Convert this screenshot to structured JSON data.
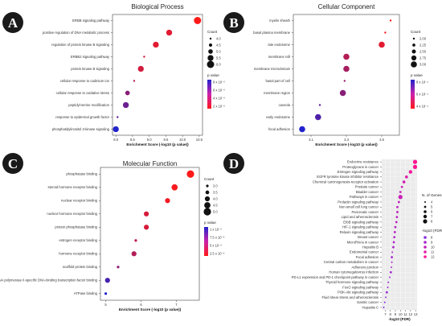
{
  "panels": [
    {
      "id": "A",
      "badge": "A",
      "chart_data": {
        "type": "scatter",
        "title": "Biological Process",
        "xlabel": "Enrichment Score (-log10 (p value))",
        "ylabel": "",
        "x_ticks": [
          "8.0",
          "8.5",
          "9.0",
          "9.5",
          "10.0",
          "10.5"
        ],
        "xlim": [
          7.9,
          10.6
        ],
        "categories": [
          "ERBB signaling pathway",
          "positive regulation of DNA metabolic process",
          "regulation of protein kinase B signaling",
          "ERBB2 signaling pathway",
          "protein kinase B signaling",
          "cellular response to cadmium ion",
          "cellular response to oxidative stress",
          "peptidyl-serine modification",
          "response to epidermal growth factor",
          "phosphatidylinositol 3-kinase signaling"
        ],
        "x": [
          10.45,
          9.6,
          9.2,
          8.85,
          8.75,
          8.55,
          8.35,
          8.3,
          8.05,
          8.0
        ],
        "size": [
          6.0,
          5.5,
          5.5,
          4.0,
          5.5,
          4.0,
          5.0,
          5.5,
          4.0,
          5.5
        ],
        "color_value": [
          1.5e-05,
          2.5e-05,
          2.5e-05,
          3e-05,
          3e-05,
          4e-05,
          5.5e-05,
          6.5e-05,
          7e-05,
          9e-05
        ],
        "size_legend": {
          "title": "Count",
          "values": [
            "4.0",
            "4.5",
            "5.0",
            "5.5",
            "6.0"
          ]
        },
        "color_legend": {
          "title": "p value",
          "labels": [
            "8 x 10⁻⁵",
            "6 x 10⁻⁵",
            "4 x 10⁻⁵",
            "2 x 10⁻⁵"
          ]
        },
        "color_low": "#ff1a1a",
        "color_high": "#2222cc"
      }
    },
    {
      "id": "B",
      "badge": "B",
      "chart_data": {
        "type": "scatter",
        "title": "Cellular Component",
        "xlabel": "Enrichment Score (-log10 (p value))",
        "ylabel": "",
        "x_ticks": [
          "3.1",
          "3.3",
          "3.5"
        ],
        "xlim": [
          3.0,
          3.6
        ],
        "categories": [
          "myelin sheath",
          "basal plasma membrane",
          "late endosome",
          "membrane raft",
          "membrane microdomain",
          "basal part of cell",
          "membrane region",
          "caveola",
          "early endosome",
          "focal adhesion"
        ],
        "x": [
          3.55,
          3.52,
          3.5,
          3.3,
          3.3,
          3.29,
          3.28,
          3.15,
          3.14,
          3.05
        ],
        "size": [
          2.0,
          2.0,
          3.0,
          3.0,
          3.0,
          2.0,
          3.0,
          2.0,
          3.0,
          3.0
        ],
        "color_value": [
          0.00015,
          0.0002,
          0.00025,
          0.0004,
          0.00045,
          0.0005,
          0.00055,
          0.0007,
          0.00075,
          0.0009
        ],
        "size_legend": {
          "title": "Count",
          "values": [
            "2.00",
            "2.25",
            "2.50",
            "2.75",
            "3.00"
          ]
        },
        "color_legend": {
          "title": "p value",
          "labels": [
            "8 x 10⁻⁴",
            "6 x 10⁻⁴",
            "4 x 10⁻⁴"
          ]
        },
        "color_low": "#ff1a1a",
        "color_high": "#2222cc"
      }
    },
    {
      "id": "C",
      "badge": "C",
      "chart_data": {
        "type": "scatter",
        "title": "Molecular Function",
        "xlabel": "Enrichment Score (-log10 (p value))",
        "ylabel": "",
        "x_ticks": [
          "5",
          "6",
          "7"
        ],
        "xlim": [
          4.85,
          7.65
        ],
        "categories": [
          "phosphatase binding",
          "steroid hormone receptor binding",
          "nuclear receptor binding",
          "nuclear hormone receptor binding",
          "protein phosphatase binding",
          "estrogen receptor binding",
          "hormone receptor binding",
          "scaffold protein binding",
          "RNA polymerase II-specific DNA-binding transcription factor binding",
          "ATPase binding"
        ],
        "x": [
          7.4,
          6.95,
          6.75,
          6.15,
          6.15,
          5.85,
          5.8,
          5.35,
          5.05,
          5.0
        ],
        "size": [
          5.0,
          4.5,
          4.0,
          4.0,
          4.0,
          3.0,
          4.0,
          3.0,
          4.0,
          3.0
        ],
        "color_value": [
          3e-07,
          5e-07,
          8e-07,
          2e-06,
          2e-06,
          3e-06,
          3.5e-06,
          5e-06,
          8e-06,
          9.5e-06
        ],
        "size_legend": {
          "title": "Count",
          "values": [
            "3.0",
            "3.5",
            "4.0",
            "4.5",
            "5.0"
          ]
        },
        "color_legend": {
          "title": "p value",
          "labels": [
            "1 x 10⁻⁵",
            "7.5 x 10⁻⁶",
            "5 x 10⁻⁶",
            "2.5 x 10⁻⁶"
          ]
        },
        "color_low": "#ff1a1a",
        "color_high": "#2222cc"
      }
    },
    {
      "id": "D",
      "badge": "D",
      "chart_data": {
        "type": "scatter",
        "title": "",
        "xlabel": "-log10 (FDR)",
        "ylabel": "",
        "x_ticks": [
          "7",
          "8",
          "9",
          "10",
          "11",
          "12",
          "13"
        ],
        "xlim": [
          6.3,
          13.3
        ],
        "categories": [
          "Endocrine resistance",
          "Proteoglycans in cancer",
          "Estrogen signaling pathway",
          "EGFR tyrosine kinase inhibitor resistance",
          "Chemical carcinogenesis-receptor activation",
          "Prostate cancer",
          "Bladder cancer",
          "Pathways in cancer",
          "Prolactin signaling pathway",
          "Non-small cell lung cancer",
          "Pancreatic cancer",
          "Lipid and atherosclerosis",
          "ErbB signaling pathway",
          "HIF-1 signaling pathway",
          "Relaxin signaling pathway",
          "Breast cancer",
          "MicroRNAs in cancer",
          "Hepatitis B",
          "Endometrial cancer",
          "Focal adhesion",
          "Central carbon metabolism in cancer",
          "Adherens junction",
          "Human cytomegalovirus infection",
          "PD-L1 expression and PD-1 checkpoint pathway in cancer",
          "Thyroid hormone signaling pathway",
          "FoxO signaling pathway",
          "PI3K-Akt signaling pathway",
          "Fluid shear stress and atherosclerosis",
          "Gastric cancer",
          "Hepatitis C"
        ],
        "x": [
          12.9,
          12.9,
          12.0,
          11.2,
          10.7,
          10.3,
          10.0,
          10.0,
          9.7,
          9.4,
          9.4,
          9.3,
          9.2,
          9.0,
          8.9,
          8.8,
          8.7,
          8.6,
          8.4,
          8.3,
          8.3,
          8.2,
          8.1,
          7.9,
          7.6,
          7.5,
          7.3,
          7.1,
          6.9,
          6.7
        ],
        "size": [
          8,
          8,
          7,
          6,
          6,
          5,
          5,
          8,
          5,
          5,
          5,
          5,
          5,
          5,
          5,
          5,
          5,
          5,
          4,
          5,
          4,
          4,
          5,
          4,
          4,
          4,
          5,
          4,
          4,
          4
        ],
        "color_value": [
          12.9,
          12.9,
          12.0,
          11.2,
          10.7,
          10.3,
          10.0,
          10.0,
          9.7,
          9.4,
          9.4,
          9.3,
          9.2,
          9.0,
          8.9,
          8.8,
          8.7,
          8.6,
          8.4,
          8.3,
          8.3,
          8.2,
          8.1,
          7.9,
          7.6,
          7.5,
          7.3,
          7.1,
          6.9,
          6.7
        ],
        "size_legend": {
          "title": "N. of Genes",
          "values": [
            "4",
            "5",
            "6",
            "7",
            "8"
          ]
        },
        "color_legend": {
          "title": "-log10 (FDR)",
          "values": [
            "8",
            "9",
            "10",
            "11",
            "12"
          ]
        },
        "color_low": "#8a2be2",
        "color_high": "#ff1493",
        "grid": true,
        "background": "#ebebeb"
      }
    }
  ]
}
